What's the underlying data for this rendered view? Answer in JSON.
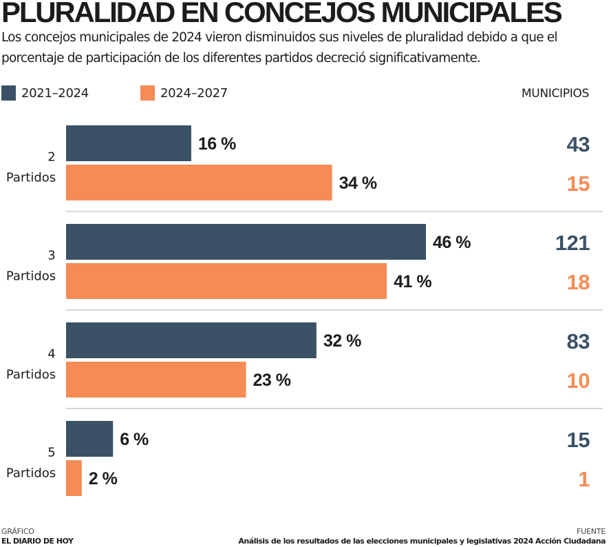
{
  "title": "PLURALIDAD EN CONCEJOS MUNICIPALES",
  "subtitle": "Los concejos municipales de 2024 vieron disminuidos sus niveles de pluralidad debido a que el porcentaje de participación de los diferentes partidos decreció significativamente.",
  "legend": [
    {
      "label": "2021–2024",
      "color": "#3a5166"
    },
    {
      "label": "2024–2027",
      "color": "#f58b55"
    }
  ],
  "column_header": "MUNICIPIOS",
  "chart_data": {
    "type": "bar",
    "orientation": "horizontal",
    "categories": [
      {
        "line1": "2",
        "line2": "Partidos"
      },
      {
        "line1": "3",
        "line2": "Partidos"
      },
      {
        "line1": "4",
        "line2": "Partidos"
      },
      {
        "line1": "5",
        "line2": "Partidos"
      }
    ],
    "series": [
      {
        "name": "2021–2024",
        "color": "#3a5166",
        "values": [
          16,
          46,
          32,
          6
        ],
        "labels": [
          "16 %",
          "46 %",
          "32 %",
          "6 %"
        ],
        "municipios": [
          "43",
          "121",
          "83",
          "15"
        ]
      },
      {
        "name": "2024–2027",
        "color": "#f58b55",
        "values": [
          34,
          41,
          23,
          2
        ],
        "labels": [
          "34 %",
          "41 %",
          "23 %",
          "2 %"
        ],
        "municipios": [
          "15",
          "18",
          "10",
          "1"
        ]
      }
    ],
    "unit": "%",
    "xlim": [
      0,
      46
    ]
  },
  "footer": {
    "left_label": "GRÁFICO",
    "left_value": "EL DIARIO DE HOY",
    "right_label": "FUENTE",
    "right_value": "Análisis de los resultados de las elecciones municipales y legislativas 2024 Acción Ciudadana"
  }
}
